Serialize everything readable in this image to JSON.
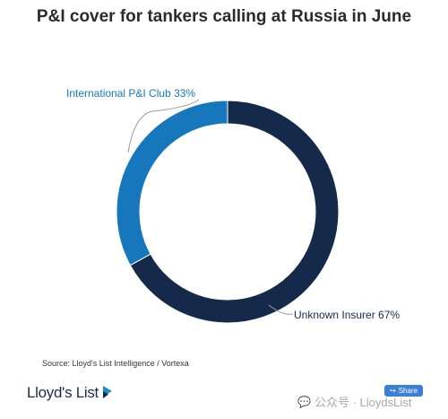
{
  "chart_data": {
    "type": "pie",
    "donut": true,
    "title": "P&I cover for tankers calling at Russia in June",
    "slices": [
      {
        "label": "Unknown Insurer 67%",
        "value": 67,
        "color": "#152a4a"
      },
      {
        "label": "International P&I Club 33%",
        "value": 33,
        "color": "#1777bd"
      }
    ],
    "source": "Source: Lloyd's List Intelligence / Vortexa"
  },
  "footer": {
    "brand": "Lloyd's List",
    "share_label": "Share",
    "watermark_text": "公众号 · LloydsList",
    "share_icon": "share-icon",
    "watermark_icon": "wechat-icon"
  },
  "colors": {
    "label_unknown": "#152a4a",
    "label_club": "#1777bd",
    "share_bg": "#3b7fd9"
  }
}
